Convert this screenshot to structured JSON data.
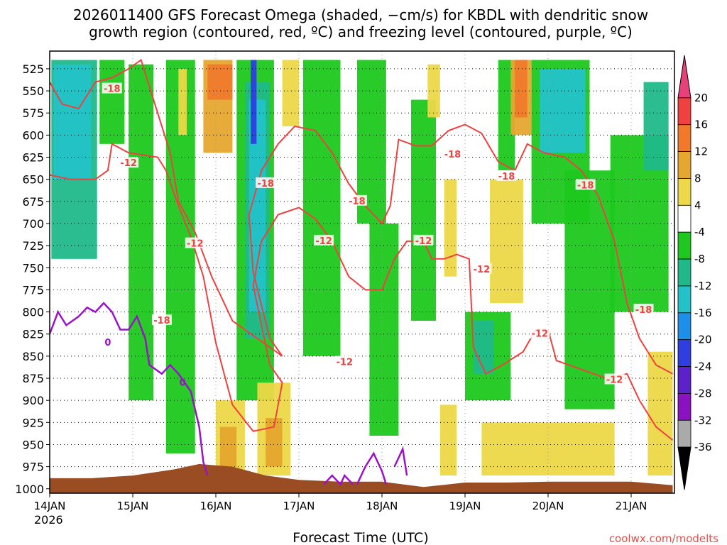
{
  "chart_data": {
    "type": "heatmap",
    "title_line1": "2026011400 GFS Forecast Omega (shaded, −cm/s) for KBDL with dendritic snow",
    "title_line2": "growth region (contoured, red, ºC) and freezing level (contoured, purple, ºC)",
    "xlabel": "Forecast Time (UTC)",
    "credit": "coolwx.com/modelts",
    "x_year_label": "2026",
    "x_ticks": [
      {
        "day": 0,
        "label": "14JAN"
      },
      {
        "day": 1,
        "label": "15JAN"
      },
      {
        "day": 2,
        "label": "16JAN"
      },
      {
        "day": 3,
        "label": "17JAN"
      },
      {
        "day": 4,
        "label": "18JAN"
      },
      {
        "day": 5,
        "label": "19JAN"
      },
      {
        "day": 6,
        "label": "20JAN"
      },
      {
        "day": 7,
        "label": "21JAN"
      }
    ],
    "xlim": [
      0,
      7.5
    ],
    "ylim": [
      1005,
      505
    ],
    "y_ticks": [
      525,
      550,
      575,
      600,
      625,
      650,
      675,
      700,
      725,
      750,
      775,
      800,
      825,
      850,
      875,
      900,
      925,
      950,
      975,
      1000
    ],
    "grid": "dotted",
    "colorbar": {
      "ticks": [
        20,
        16,
        12,
        8,
        4,
        -4,
        -8,
        -12,
        -16,
        -20,
        -24,
        -28,
        -32,
        -36
      ],
      "colors": [
        "#e8417a",
        "#f04040",
        "#f07a2a",
        "#e5a72e",
        "#ecd848",
        "#ffffff",
        "#1ec81e",
        "#20b98a",
        "#22c2c8",
        "#1e8fe8",
        "#2e3ee0",
        "#5a22c8",
        "#8a12c0",
        "#aaaaaa",
        "#000000"
      ]
    },
    "omega_bands": [
      {
        "x": 0.02,
        "w": 0.55,
        "p0": 515,
        "p1": 740,
        "color": "#20b98a"
      },
      {
        "x": 0.05,
        "w": 0.45,
        "p0": 520,
        "p1": 650,
        "color": "#22c2c8"
      },
      {
        "x": 0.6,
        "w": 0.3,
        "p0": 515,
        "p1": 610,
        "color": "#1ec81e"
      },
      {
        "x": 0.95,
        "w": 0.3,
        "p0": 520,
        "p1": 900,
        "color": "#1ec81e"
      },
      {
        "x": 1.4,
        "w": 0.35,
        "p0": 515,
        "p1": 960,
        "color": "#1ec81e"
      },
      {
        "x": 1.55,
        "w": 0.1,
        "p0": 525,
        "p1": 600,
        "color": "#ecd848"
      },
      {
        "x": 1.85,
        "w": 0.35,
        "p0": 515,
        "p1": 620,
        "color": "#e5a72e"
      },
      {
        "x": 1.9,
        "w": 0.3,
        "p0": 520,
        "p1": 560,
        "color": "#f07a2a"
      },
      {
        "x": 2.25,
        "w": 0.45,
        "p0": 515,
        "p1": 900,
        "color": "#1ec81e"
      },
      {
        "x": 2.35,
        "w": 0.3,
        "p0": 540,
        "p1": 830,
        "color": "#20b98a"
      },
      {
        "x": 2.4,
        "w": 0.2,
        "p0": 560,
        "p1": 800,
        "color": "#22c2c8"
      },
      {
        "x": 2.42,
        "w": 0.07,
        "p0": 515,
        "p1": 610,
        "color": "#2e3ee0"
      },
      {
        "x": 2.0,
        "w": 0.35,
        "p0": 900,
        "p1": 985,
        "color": "#ecd848"
      },
      {
        "x": 2.05,
        "w": 0.2,
        "p0": 930,
        "p1": 975,
        "color": "#e5a72e"
      },
      {
        "x": 2.5,
        "w": 0.4,
        "p0": 880,
        "p1": 985,
        "color": "#ecd848"
      },
      {
        "x": 2.6,
        "w": 0.2,
        "p0": 920,
        "p1": 975,
        "color": "#e5a72e"
      },
      {
        "x": 2.8,
        "w": 0.2,
        "p0": 515,
        "p1": 590,
        "color": "#ecd848"
      },
      {
        "x": 3.05,
        "w": 0.45,
        "p0": 515,
        "p1": 850,
        "color": "#1ec81e"
      },
      {
        "x": 3.7,
        "w": 0.35,
        "p0": 515,
        "p1": 700,
        "color": "#1ec81e"
      },
      {
        "x": 3.85,
        "w": 0.35,
        "p0": 700,
        "p1": 940,
        "color": "#1ec81e"
      },
      {
        "x": 4.35,
        "w": 0.3,
        "p0": 560,
        "p1": 810,
        "color": "#1ec81e"
      },
      {
        "x": 4.55,
        "w": 0.15,
        "p0": 520,
        "p1": 580,
        "color": "#ecd848"
      },
      {
        "x": 4.75,
        "w": 0.15,
        "p0": 650,
        "p1": 760,
        "color": "#ecd848"
      },
      {
        "x": 4.7,
        "w": 0.2,
        "p0": 905,
        "p1": 985,
        "color": "#ecd848"
      },
      {
        "x": 5.0,
        "w": 0.55,
        "p0": 800,
        "p1": 900,
        "color": "#1ec81e"
      },
      {
        "x": 5.1,
        "w": 0.25,
        "p0": 810,
        "p1": 870,
        "color": "#20b98a"
      },
      {
        "x": 5.4,
        "w": 0.2,
        "p0": 515,
        "p1": 640,
        "color": "#1ec81e"
      },
      {
        "x": 5.3,
        "w": 0.4,
        "p0": 650,
        "p1": 790,
        "color": "#ecd848"
      },
      {
        "x": 5.55,
        "w": 0.25,
        "p0": 515,
        "p1": 600,
        "color": "#e5a72e"
      },
      {
        "x": 5.6,
        "w": 0.15,
        "p0": 515,
        "p1": 580,
        "color": "#f07a2a"
      },
      {
        "x": 5.2,
        "w": 1.6,
        "p0": 925,
        "p1": 985,
        "color": "#ecd848"
      },
      {
        "x": 5.8,
        "w": 0.7,
        "p0": 515,
        "p1": 700,
        "color": "#1ec81e"
      },
      {
        "x": 5.9,
        "w": 0.55,
        "p0": 525,
        "p1": 620,
        "color": "#22c2c8"
      },
      {
        "x": 6.2,
        "w": 0.6,
        "p0": 640,
        "p1": 910,
        "color": "#1ec81e"
      },
      {
        "x": 6.75,
        "w": 0.7,
        "p0": 600,
        "p1": 800,
        "color": "#1ec81e"
      },
      {
        "x": 7.15,
        "w": 0.3,
        "p0": 540,
        "p1": 640,
        "color": "#20b98a"
      },
      {
        "x": 7.2,
        "w": 0.3,
        "p0": 845,
        "p1": 985,
        "color": "#ecd848"
      }
    ],
    "series": [
      {
        "name": "-18",
        "color": "#f04040",
        "points": [
          [
            0.0,
            540
          ],
          [
            0.15,
            565
          ],
          [
            0.35,
            570
          ],
          [
            0.55,
            540
          ],
          [
            0.75,
            535
          ],
          [
            0.95,
            525
          ],
          [
            1.1,
            515
          ],
          [
            1.25,
            560
          ],
          [
            1.45,
            620
          ],
          [
            1.55,
            675
          ],
          [
            1.75,
            710
          ],
          [
            1.95,
            760
          ],
          [
            2.2,
            810
          ],
          [
            2.5,
            830
          ],
          [
            2.8,
            850
          ],
          [
            2.65,
            830
          ],
          [
            2.45,
            755
          ],
          [
            2.4,
            690
          ],
          [
            2.55,
            640
          ],
          [
            2.75,
            610
          ],
          [
            2.95,
            590
          ],
          [
            3.2,
            595
          ],
          [
            3.4,
            620
          ],
          [
            3.6,
            655
          ],
          [
            3.8,
            680
          ],
          [
            4.0,
            700
          ],
          [
            4.1,
            680
          ],
          [
            4.2,
            605
          ],
          [
            4.4,
            612
          ],
          [
            4.6,
            612
          ],
          [
            4.8,
            595
          ],
          [
            5.0,
            588
          ],
          [
            5.2,
            598
          ],
          [
            5.4,
            630
          ],
          [
            5.6,
            640
          ],
          [
            5.75,
            610
          ],
          [
            5.95,
            620
          ],
          [
            6.2,
            625
          ],
          [
            6.4,
            640
          ],
          [
            6.6,
            668
          ],
          [
            6.8,
            720
          ],
          [
            6.95,
            790
          ],
          [
            7.1,
            830
          ],
          [
            7.3,
            860
          ],
          [
            7.5,
            870
          ]
        ],
        "labels": [
          [
            0.75,
            548
          ],
          [
            2.6,
            655
          ],
          [
            4.85,
            622
          ],
          [
            5.5,
            647
          ],
          [
            6.45,
            657
          ],
          [
            7.15,
            798
          ],
          [
            1.35,
            810
          ],
          [
            3.7,
            675
          ]
        ]
      },
      {
        "name": "-12",
        "color": "#f04040",
        "points": [
          [
            0.0,
            645
          ],
          [
            0.25,
            650
          ],
          [
            0.55,
            650
          ],
          [
            0.7,
            640
          ],
          [
            0.75,
            610
          ],
          [
            0.95,
            620
          ],
          [
            1.3,
            625
          ],
          [
            1.4,
            640
          ],
          [
            1.55,
            680
          ],
          [
            1.7,
            715
          ],
          [
            1.85,
            760
          ],
          [
            2.0,
            835
          ],
          [
            2.2,
            905
          ],
          [
            2.45,
            935
          ],
          [
            2.7,
            930
          ],
          [
            2.8,
            880
          ],
          [
            2.65,
            860
          ],
          [
            2.45,
            770
          ],
          [
            2.55,
            720
          ],
          [
            2.75,
            690
          ],
          [
            3.0,
            682
          ],
          [
            3.2,
            695
          ],
          [
            3.4,
            720
          ],
          [
            3.6,
            760
          ],
          [
            3.8,
            775
          ],
          [
            4.0,
            775
          ],
          [
            4.15,
            740
          ],
          [
            4.3,
            720
          ],
          [
            4.5,
            720
          ],
          [
            4.6,
            740
          ],
          [
            4.75,
            740
          ],
          [
            4.9,
            735
          ],
          [
            5.05,
            740
          ],
          [
            5.1,
            840
          ],
          [
            5.25,
            870
          ],
          [
            5.45,
            860
          ],
          [
            5.7,
            845
          ],
          [
            5.85,
            820
          ],
          [
            6.0,
            820
          ],
          [
            6.1,
            855
          ],
          [
            6.4,
            865
          ],
          [
            6.7,
            875
          ],
          [
            6.95,
            870
          ],
          [
            7.1,
            900
          ],
          [
            7.3,
            930
          ],
          [
            7.5,
            945
          ]
        ],
        "labels": [
          [
            1.75,
            723
          ],
          [
            3.3,
            720
          ],
          [
            4.5,
            720
          ],
          [
            5.2,
            752
          ],
          [
            5.9,
            825
          ],
          [
            3.55,
            857
          ],
          [
            6.8,
            877
          ],
          [
            0.95,
            632
          ]
        ]
      }
    ],
    "freezing_level": {
      "name": "0",
      "color": "#9b12c8",
      "points": [
        [
          0.0,
          825
        ],
        [
          0.1,
          800
        ],
        [
          0.2,
          815
        ],
        [
          0.35,
          805
        ],
        [
          0.45,
          795
        ],
        [
          0.55,
          800
        ],
        [
          0.65,
          790
        ],
        [
          0.75,
          800
        ],
        [
          0.85,
          820
        ],
        [
          0.95,
          820
        ],
        [
          1.05,
          805
        ],
        [
          1.15,
          830
        ],
        [
          1.2,
          860
        ],
        [
          1.35,
          870
        ],
        [
          1.45,
          860
        ],
        [
          1.55,
          870
        ],
        [
          1.7,
          890
        ],
        [
          1.8,
          930
        ],
        [
          1.85,
          970
        ],
        [
          1.9,
          985
        ]
      ],
      "label_points": [
        [
          0.7,
          835
        ],
        [
          1.6,
          880
        ]
      ],
      "blips": [
        [
          [
            3.3,
            995
          ],
          [
            3.4,
            985
          ],
          [
            3.5,
            995
          ],
          [
            3.55,
            985
          ],
          [
            3.65,
            995
          ]
        ],
        [
          [
            3.7,
            995
          ],
          [
            3.8,
            975
          ],
          [
            3.9,
            960
          ],
          [
            4.0,
            980
          ],
          [
            4.05,
            995
          ]
        ],
        [
          [
            4.15,
            975
          ],
          [
            4.25,
            955
          ],
          [
            4.3,
            985
          ]
        ]
      ]
    },
    "terrain": {
      "color": "#9a4c22",
      "points": [
        [
          0.0,
          988
        ],
        [
          0.5,
          988
        ],
        [
          1.0,
          985
        ],
        [
          1.5,
          978
        ],
        [
          1.8,
          972
        ],
        [
          2.2,
          975
        ],
        [
          2.6,
          985
        ],
        [
          3.0,
          990
        ],
        [
          3.5,
          992
        ],
        [
          4.0,
          992
        ],
        [
          4.5,
          998
        ],
        [
          5.0,
          993
        ],
        [
          5.5,
          993
        ],
        [
          6.0,
          992
        ],
        [
          6.5,
          992
        ],
        [
          7.0,
          992
        ],
        [
          7.5,
          996
        ]
      ]
    }
  }
}
